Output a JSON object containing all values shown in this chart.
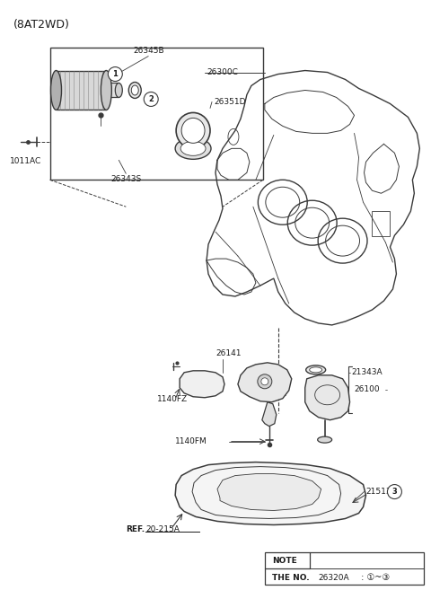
{
  "title": "(8AT2WD)",
  "bg_color": "#ffffff",
  "line_color": "#3a3a3a",
  "text_color": "#1a1a1a",
  "figsize": [
    4.8,
    6.57
  ],
  "dpi": 100,
  "note_box": {
    "label1": "NOTE",
    "label2": "THE NO.",
    "label3": "26320A",
    "label4": " : ①~③"
  }
}
